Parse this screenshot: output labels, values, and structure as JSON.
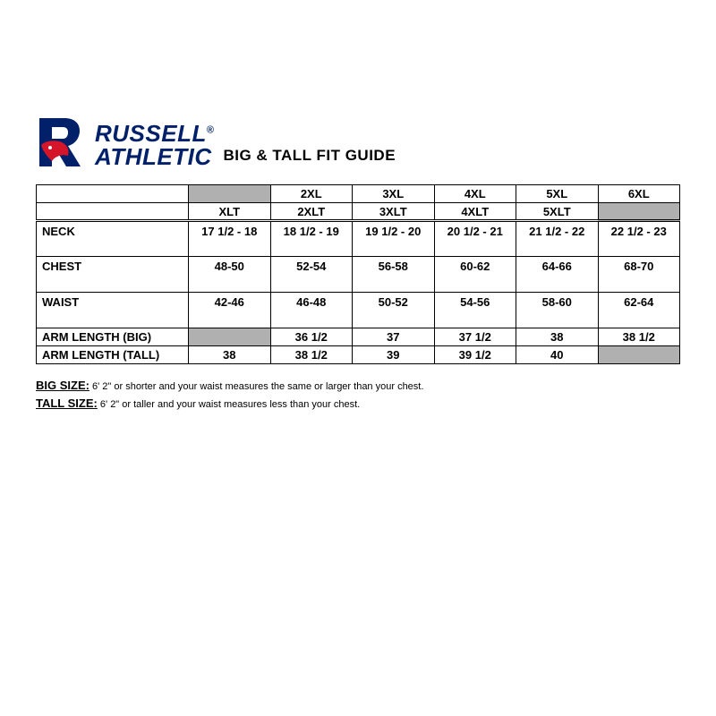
{
  "brand": {
    "line1": "RUSSELL",
    "line2": "ATHLETIC",
    "registered": "®"
  },
  "subtitle": "BIG & TALL FIT GUIDE",
  "colors": {
    "brand_blue": "#002169",
    "brand_red": "#d4152a",
    "grey_cell": "#b0b0b0",
    "border": "#000000",
    "text": "#000000",
    "background": "#ffffff"
  },
  "table": {
    "header_row1": [
      "",
      "",
      "2XL",
      "3XL",
      "4XL",
      "5XL",
      "6XL"
    ],
    "header_row2": [
      "",
      "XLT",
      "2XLT",
      "3XLT",
      "4XLT",
      "5XLT",
      ""
    ],
    "rows": [
      {
        "label": "NECK",
        "cells": [
          "17 1/2 - 18",
          "18 1/2 - 19",
          "19 1/2 - 20",
          "20 1/2 - 21",
          "21 1/2 - 22",
          "22 1/2 - 23"
        ],
        "tall": true
      },
      {
        "label": "CHEST",
        "cells": [
          "48-50",
          "52-54",
          "56-58",
          "60-62",
          "64-66",
          "68-70"
        ],
        "tall": true
      },
      {
        "label": "WAIST",
        "cells": [
          "42-46",
          "46-48",
          "50-52",
          "54-56",
          "58-60",
          "62-64"
        ],
        "tall": true
      },
      {
        "label": "ARM LENGTH (BIG)",
        "cells": [
          "",
          "36 1/2",
          "37",
          "37 1/2",
          "38",
          "38 1/2"
        ],
        "grey_cells": [
          0
        ],
        "tall": false
      },
      {
        "label": "ARM LENGTH (TALL)",
        "cells": [
          "38",
          "38 1/2",
          "39",
          "39 1/2",
          "40",
          ""
        ],
        "grey_cells": [
          5
        ],
        "tall": false
      }
    ],
    "header_grey": {
      "row1_col": 1,
      "row2_col": 6
    }
  },
  "notes": {
    "big": {
      "label": "BIG SIZE:",
      "text": " 6' 2\" or shorter and your waist measures the same or larger than your chest."
    },
    "tall": {
      "label": "TALL SIZE:",
      "text": " 6' 2\" or taller and your waist measures less than your chest."
    }
  }
}
